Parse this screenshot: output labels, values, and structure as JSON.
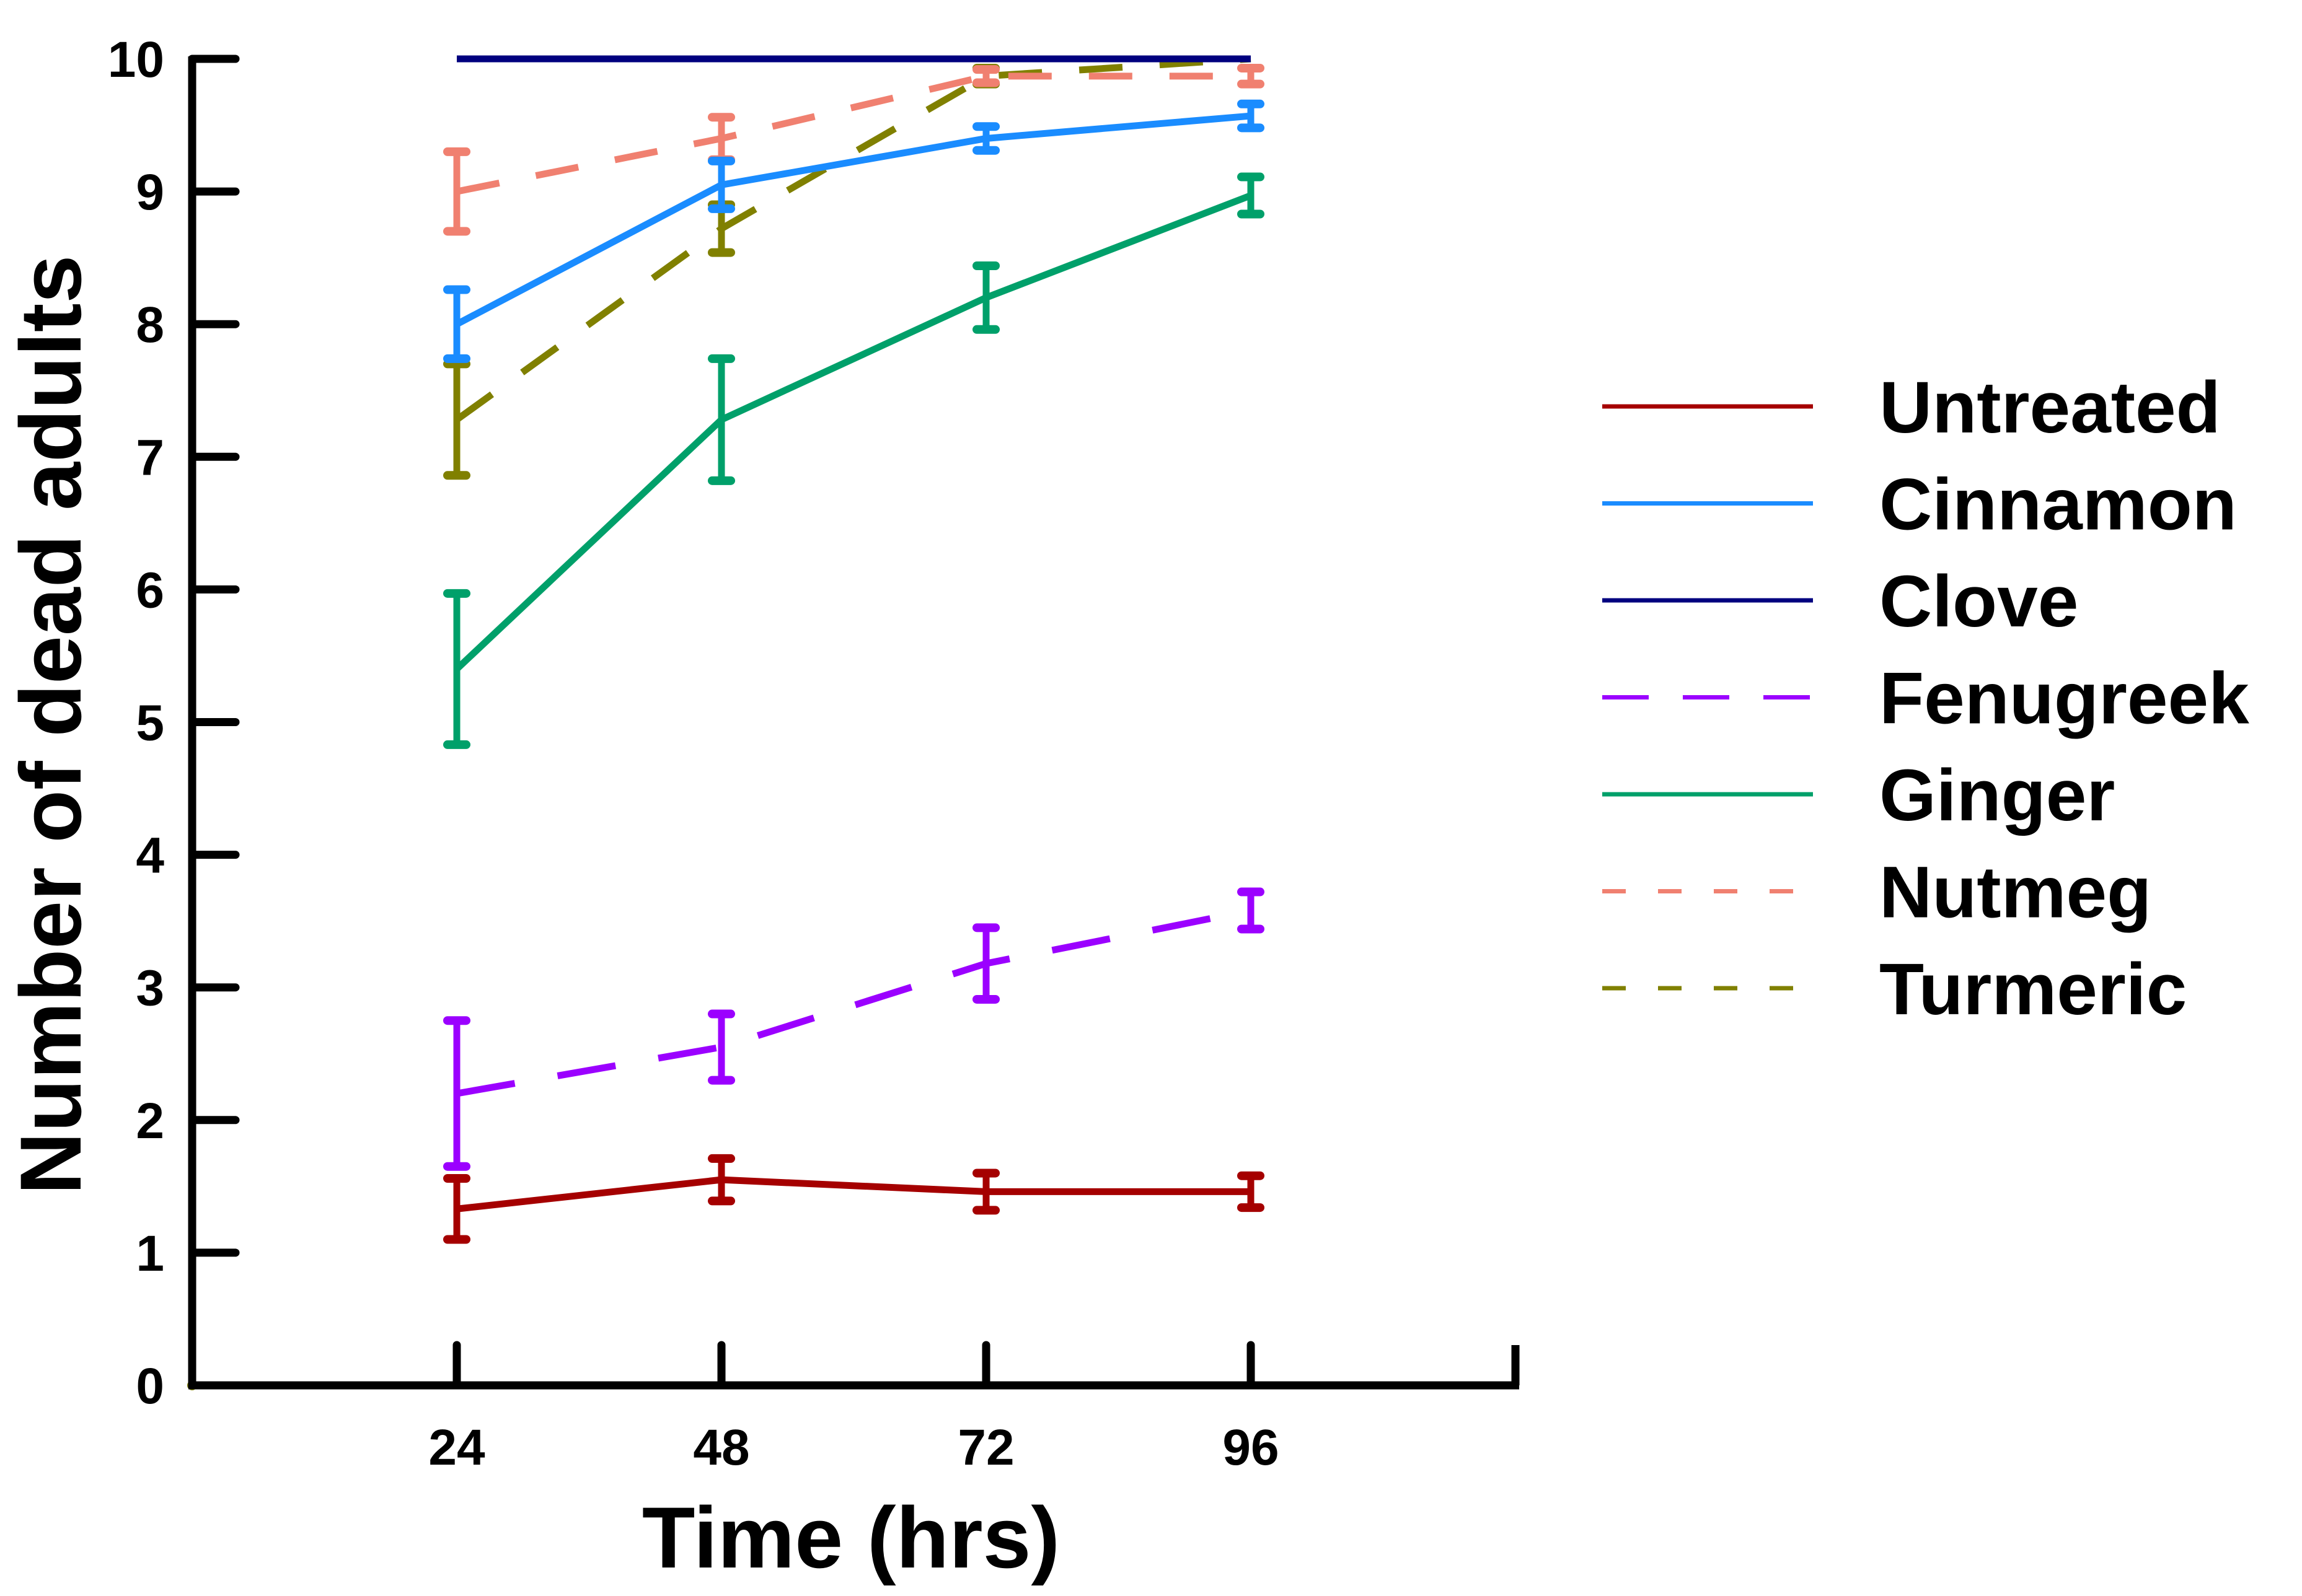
{
  "chart_data": {
    "type": "line",
    "title": "",
    "xlabel": "Time (hrs)",
    "ylabel": "Number of dead adults",
    "x": [
      24,
      48,
      72,
      96
    ],
    "x_tick_labels": [
      "24",
      "48",
      "72",
      "96"
    ],
    "xlim": [
      0,
      120
    ],
    "ylim": [
      0,
      10
    ],
    "y_ticks": [
      0,
      1,
      2,
      3,
      4,
      5,
      6,
      7,
      8,
      9,
      10
    ],
    "y_tick_labels": [
      "0",
      "1",
      "2",
      "3",
      "4",
      "5",
      "6",
      "7",
      "8",
      "9",
      "10"
    ],
    "grid": false,
    "legend_position": "right",
    "series": [
      {
        "name": "Untreated",
        "color": "#a50000",
        "style": "solid",
        "values": [
          1.33,
          1.55,
          1.46,
          1.46
        ],
        "errors": [
          0.23,
          0.16,
          0.14,
          0.12
        ]
      },
      {
        "name": "Cinnamon",
        "color": "#1a8cff",
        "style": "solid",
        "values": [
          8.0,
          9.05,
          9.4,
          9.57
        ],
        "errors": [
          0.26,
          0.18,
          0.09,
          0.09
        ]
      },
      {
        "name": "Clove",
        "color": "#00007f",
        "style": "solid",
        "values": [
          10.0,
          10.0,
          10.0,
          10.0
        ],
        "errors": [
          0,
          0,
          0,
          0
        ]
      },
      {
        "name": "Fenugreek",
        "color": "#9b00ff",
        "style": "longdash",
        "values": [
          2.2,
          2.55,
          3.18,
          3.58
        ],
        "errors": [
          0.55,
          0.25,
          0.27,
          0.14
        ]
      },
      {
        "name": "Ginger",
        "color": "#00a06a",
        "style": "solid",
        "values": [
          5.4,
          7.28,
          8.2,
          8.97
        ],
        "errors": [
          0.57,
          0.46,
          0.24,
          0.14
        ]
      },
      {
        "name": "Nutmeg",
        "color": "#f08070",
        "style": "dash",
        "values": [
          9.0,
          9.4,
          9.87,
          9.87
        ],
        "errors": [
          0.3,
          0.16,
          0.05,
          0.06
        ]
      },
      {
        "name": "Turmeric",
        "color": "#808000",
        "style": "dash",
        "values": [
          7.28,
          8.72,
          9.87,
          10.0
        ],
        "errors": [
          0.42,
          0.18,
          0.06,
          0.0
        ]
      }
    ]
  }
}
